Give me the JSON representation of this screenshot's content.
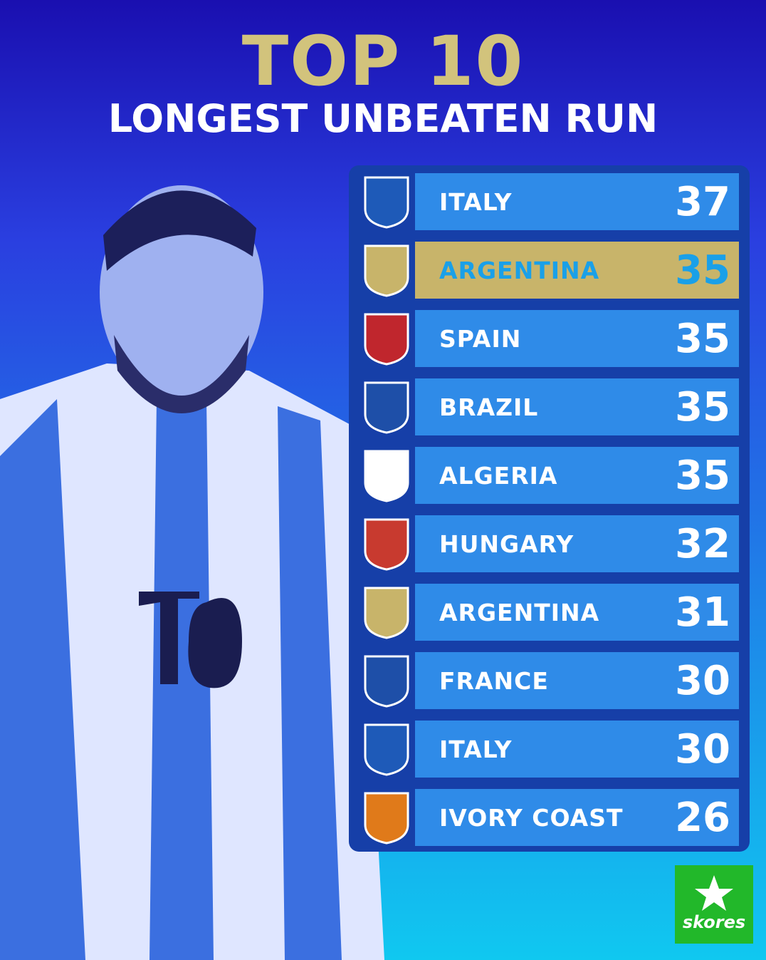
{
  "header": {
    "title": "TOP 10",
    "subtitle": "LONGEST UNBEATEN RUN"
  },
  "table": {
    "rows": [
      {
        "team": "ITALY",
        "value": 37,
        "badge": "#1e5ab8"
      },
      {
        "team": "ARGENTINA",
        "value": 35,
        "badge": "#c8b46a",
        "highlight": true
      },
      {
        "team": "SPAIN",
        "value": 35,
        "badge": "#c0262d"
      },
      {
        "team": "BRAZIL",
        "value": 35,
        "badge": "#1e4fa8"
      },
      {
        "team": "ALGERIA",
        "value": 35,
        "badge": "#ffffff"
      },
      {
        "team": "HUNGARY",
        "value": 32,
        "badge": "#c83a2f"
      },
      {
        "team": "ARGENTINA",
        "value": 31,
        "badge": "#c8b46a"
      },
      {
        "team": "FRANCE",
        "value": 30,
        "badge": "#1e4fa8"
      },
      {
        "team": "ITALY",
        "value": 30,
        "badge": "#1e5ab8"
      },
      {
        "team": "IVORY COAST",
        "value": 26,
        "badge": "#e07a1a"
      }
    ]
  },
  "logo": "skores"
}
